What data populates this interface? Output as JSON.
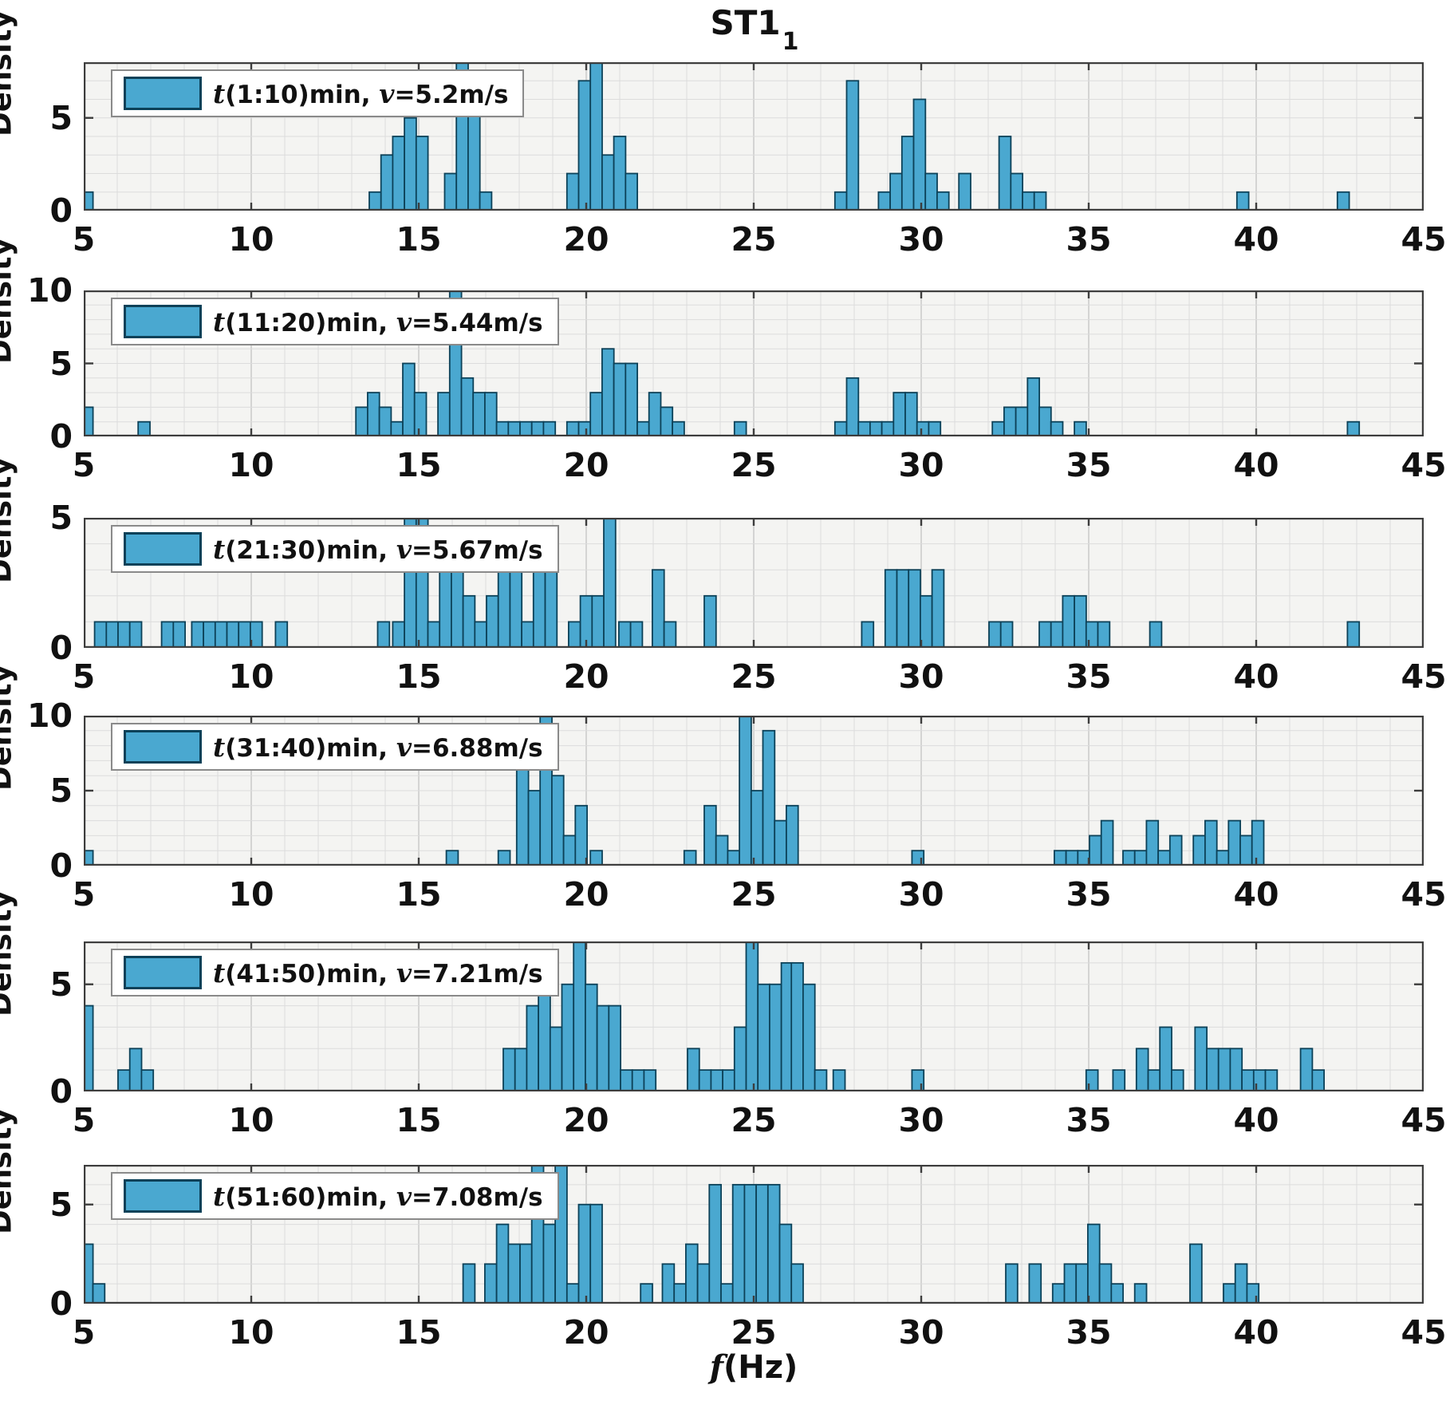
{
  "figure": {
    "title": {
      "text": "ST1",
      "subscript": "1"
    },
    "xlabel_f": "f",
    "xlabel_unit": "(Hz)",
    "ylabel": "Density",
    "x_ticks": [
      5,
      10,
      15,
      20,
      25,
      30,
      35,
      40,
      45
    ],
    "colors": {
      "bar_fill": "#4aa8d0",
      "bar_edge": "#0c4158",
      "plot_bg": "#f4f4f2",
      "grid_minor": "#dcdcdc",
      "grid_major": "#c6c6c6",
      "axis": "#3d3d3d"
    }
  },
  "chart_data": [
    {
      "type": "bar",
      "legend": {
        "t_var": "t",
        "time": "(1:10)min, ",
        "v_var": "v",
        "speed": "=5.2m/s"
      },
      "ylim": 8,
      "yticks": [
        0,
        5
      ],
      "bars": [
        [
          5.1,
          1
        ],
        [
          13.7,
          1
        ],
        [
          14.05,
          3
        ],
        [
          14.4,
          4
        ],
        [
          14.75,
          5
        ],
        [
          15.1,
          4
        ],
        [
          15.95,
          2
        ],
        [
          16.3,
          8
        ],
        [
          16.65,
          6
        ],
        [
          17.0,
          1
        ],
        [
          19.6,
          2
        ],
        [
          19.95,
          7
        ],
        [
          20.3,
          8
        ],
        [
          20.65,
          3
        ],
        [
          21.0,
          4
        ],
        [
          21.35,
          2
        ],
        [
          27.6,
          1
        ],
        [
          27.95,
          7
        ],
        [
          28.9,
          1
        ],
        [
          29.25,
          2
        ],
        [
          29.6,
          4
        ],
        [
          29.95,
          6
        ],
        [
          30.3,
          2
        ],
        [
          30.65,
          1
        ],
        [
          31.3,
          2
        ],
        [
          32.5,
          4
        ],
        [
          32.85,
          2
        ],
        [
          33.2,
          1
        ],
        [
          33.55,
          1
        ],
        [
          39.6,
          1
        ],
        [
          42.6,
          1
        ]
      ]
    },
    {
      "type": "bar",
      "legend": {
        "t_var": "t",
        "time": "(11:20)min, ",
        "v_var": "v",
        "speed": "=5.44m/s"
      },
      "ylim": 10,
      "yticks": [
        0,
        5,
        10
      ],
      "bars": [
        [
          5.1,
          2
        ],
        [
          6.8,
          1
        ],
        [
          13.3,
          2
        ],
        [
          13.65,
          3
        ],
        [
          14.0,
          2
        ],
        [
          14.35,
          1
        ],
        [
          14.7,
          5
        ],
        [
          15.05,
          3
        ],
        [
          15.75,
          3
        ],
        [
          16.1,
          10
        ],
        [
          16.45,
          4
        ],
        [
          16.8,
          3
        ],
        [
          17.15,
          3
        ],
        [
          17.5,
          1
        ],
        [
          17.85,
          1
        ],
        [
          18.2,
          1
        ],
        [
          18.55,
          1
        ],
        [
          18.9,
          1
        ],
        [
          19.6,
          1
        ],
        [
          19.95,
          1
        ],
        [
          20.3,
          3
        ],
        [
          20.65,
          6
        ],
        [
          21.0,
          5
        ],
        [
          21.35,
          5
        ],
        [
          21.7,
          1
        ],
        [
          22.05,
          3
        ],
        [
          22.4,
          2
        ],
        [
          22.75,
          1
        ],
        [
          24.6,
          1
        ],
        [
          27.6,
          1
        ],
        [
          27.95,
          4
        ],
        [
          28.3,
          1
        ],
        [
          28.65,
          1
        ],
        [
          29.0,
          1
        ],
        [
          29.35,
          3
        ],
        [
          29.7,
          3
        ],
        [
          30.05,
          1
        ],
        [
          30.4,
          1
        ],
        [
          32.3,
          1
        ],
        [
          32.65,
          2
        ],
        [
          33.0,
          2
        ],
        [
          33.35,
          4
        ],
        [
          33.7,
          2
        ],
        [
          34.05,
          1
        ],
        [
          34.75,
          1
        ],
        [
          42.9,
          1
        ]
      ]
    },
    {
      "type": "bar",
      "legend": {
        "t_var": "t",
        "time": "(21:30)min, ",
        "v_var": "v",
        "speed": "=5.67m/s"
      },
      "ylim": 5,
      "yticks": [
        0,
        5
      ],
      "bars": [
        [
          5.5,
          1
        ],
        [
          5.85,
          1
        ],
        [
          6.2,
          1
        ],
        [
          6.55,
          1
        ],
        [
          7.5,
          1
        ],
        [
          7.85,
          1
        ],
        [
          8.4,
          1
        ],
        [
          8.75,
          1
        ],
        [
          9.1,
          1
        ],
        [
          9.45,
          1
        ],
        [
          9.8,
          1
        ],
        [
          10.15,
          1
        ],
        [
          10.9,
          1
        ],
        [
          13.95,
          1
        ],
        [
          14.4,
          1
        ],
        [
          14.75,
          5
        ],
        [
          15.1,
          5
        ],
        [
          15.45,
          1
        ],
        [
          15.8,
          3
        ],
        [
          16.15,
          3
        ],
        [
          16.5,
          2
        ],
        [
          16.85,
          1
        ],
        [
          17.2,
          2
        ],
        [
          17.55,
          3
        ],
        [
          17.9,
          3
        ],
        [
          18.25,
          1
        ],
        [
          18.6,
          3
        ],
        [
          18.95,
          3
        ],
        [
          19.65,
          1
        ],
        [
          20.0,
          2
        ],
        [
          20.35,
          2
        ],
        [
          20.7,
          5
        ],
        [
          21.15,
          1
        ],
        [
          21.5,
          1
        ],
        [
          22.15,
          3
        ],
        [
          22.5,
          1
        ],
        [
          23.7,
          2
        ],
        [
          28.4,
          1
        ],
        [
          29.1,
          3
        ],
        [
          29.45,
          3
        ],
        [
          29.8,
          3
        ],
        [
          30.15,
          2
        ],
        [
          30.5,
          3
        ],
        [
          32.2,
          1
        ],
        [
          32.55,
          1
        ],
        [
          33.7,
          1
        ],
        [
          34.05,
          1
        ],
        [
          34.4,
          2
        ],
        [
          34.75,
          2
        ],
        [
          35.1,
          1
        ],
        [
          35.45,
          1
        ],
        [
          37.0,
          1
        ],
        [
          42.9,
          1
        ]
      ]
    },
    {
      "type": "bar",
      "legend": {
        "t_var": "t",
        "time": "(31:40)min, ",
        "v_var": "v",
        "speed": "=6.88m/s"
      },
      "ylim": 10,
      "yticks": [
        0,
        5,
        10
      ],
      "bars": [
        [
          5.1,
          1
        ],
        [
          16.0,
          1
        ],
        [
          17.55,
          1
        ],
        [
          18.1,
          8
        ],
        [
          18.45,
          5
        ],
        [
          18.8,
          10
        ],
        [
          19.15,
          6
        ],
        [
          19.5,
          2
        ],
        [
          19.85,
          4
        ],
        [
          20.3,
          1
        ],
        [
          23.1,
          1
        ],
        [
          23.7,
          4
        ],
        [
          24.05,
          2
        ],
        [
          24.4,
          1
        ],
        [
          24.75,
          10
        ],
        [
          25.1,
          5
        ],
        [
          25.45,
          9
        ],
        [
          25.8,
          3
        ],
        [
          26.15,
          4
        ],
        [
          29.9,
          1
        ],
        [
          34.15,
          1
        ],
        [
          34.5,
          1
        ],
        [
          34.85,
          1
        ],
        [
          35.2,
          2
        ],
        [
          35.55,
          3
        ],
        [
          36.2,
          1
        ],
        [
          36.55,
          1
        ],
        [
          36.9,
          3
        ],
        [
          37.25,
          1
        ],
        [
          37.6,
          2
        ],
        [
          38.3,
          2
        ],
        [
          38.65,
          3
        ],
        [
          39.0,
          1
        ],
        [
          39.35,
          3
        ],
        [
          39.7,
          2
        ],
        [
          40.05,
          3
        ]
      ]
    },
    {
      "type": "bar",
      "legend": {
        "t_var": "t",
        "time": "(41:50)min, ",
        "v_var": "v",
        "speed": "=7.21m/s"
      },
      "ylim": 7,
      "yticks": [
        0,
        5
      ],
      "bars": [
        [
          5.1,
          4
        ],
        [
          6.2,
          1
        ],
        [
          6.55,
          2
        ],
        [
          6.9,
          1
        ],
        [
          17.7,
          2
        ],
        [
          18.05,
          2
        ],
        [
          18.4,
          4
        ],
        [
          18.75,
          5
        ],
        [
          19.1,
          3
        ],
        [
          19.45,
          5
        ],
        [
          19.8,
          7
        ],
        [
          20.15,
          5
        ],
        [
          20.5,
          4
        ],
        [
          20.85,
          4
        ],
        [
          21.2,
          1
        ],
        [
          21.55,
          1
        ],
        [
          21.9,
          1
        ],
        [
          23.2,
          2
        ],
        [
          23.55,
          1
        ],
        [
          23.9,
          1
        ],
        [
          24.25,
          1
        ],
        [
          24.6,
          3
        ],
        [
          24.95,
          7
        ],
        [
          25.3,
          5
        ],
        [
          25.65,
          5
        ],
        [
          26.0,
          6
        ],
        [
          26.3,
          6
        ],
        [
          26.65,
          5
        ],
        [
          27.0,
          1
        ],
        [
          27.55,
          1
        ],
        [
          29.9,
          1
        ],
        [
          35.1,
          1
        ],
        [
          35.9,
          1
        ],
        [
          36.6,
          2
        ],
        [
          36.95,
          1
        ],
        [
          37.3,
          3
        ],
        [
          37.65,
          1
        ],
        [
          38.35,
          3
        ],
        [
          38.7,
          2
        ],
        [
          39.05,
          2
        ],
        [
          39.4,
          2
        ],
        [
          39.75,
          1
        ],
        [
          40.1,
          1
        ],
        [
          40.45,
          1
        ],
        [
          41.5,
          2
        ],
        [
          41.85,
          1
        ]
      ]
    },
    {
      "type": "bar",
      "legend": {
        "t_var": "t",
        "time": "(51:60)min, ",
        "v_var": "v",
        "speed": "=7.08m/s"
      },
      "ylim": 7,
      "yticks": [
        0,
        5
      ],
      "bars": [
        [
          5.1,
          3
        ],
        [
          5.45,
          1
        ],
        [
          16.5,
          2
        ],
        [
          17.15,
          2
        ],
        [
          17.5,
          4
        ],
        [
          17.85,
          3
        ],
        [
          18.2,
          3
        ],
        [
          18.55,
          7
        ],
        [
          18.9,
          4
        ],
        [
          19.25,
          7
        ],
        [
          19.6,
          1
        ],
        [
          19.95,
          5
        ],
        [
          20.3,
          5
        ],
        [
          21.8,
          1
        ],
        [
          22.45,
          2
        ],
        [
          22.8,
          1
        ],
        [
          23.15,
          3
        ],
        [
          23.5,
          2
        ],
        [
          23.85,
          6
        ],
        [
          24.2,
          1
        ],
        [
          24.55,
          6
        ],
        [
          24.9,
          6
        ],
        [
          25.25,
          6
        ],
        [
          25.6,
          6
        ],
        [
          25.95,
          4
        ],
        [
          26.3,
          2
        ],
        [
          32.7,
          2
        ],
        [
          33.4,
          2
        ],
        [
          34.1,
          1
        ],
        [
          34.45,
          2
        ],
        [
          34.8,
          2
        ],
        [
          35.15,
          4
        ],
        [
          35.5,
          2
        ],
        [
          35.85,
          1
        ],
        [
          36.55,
          1
        ],
        [
          38.2,
          3
        ],
        [
          39.2,
          1
        ],
        [
          39.55,
          2
        ],
        [
          39.9,
          1
        ]
      ]
    }
  ]
}
